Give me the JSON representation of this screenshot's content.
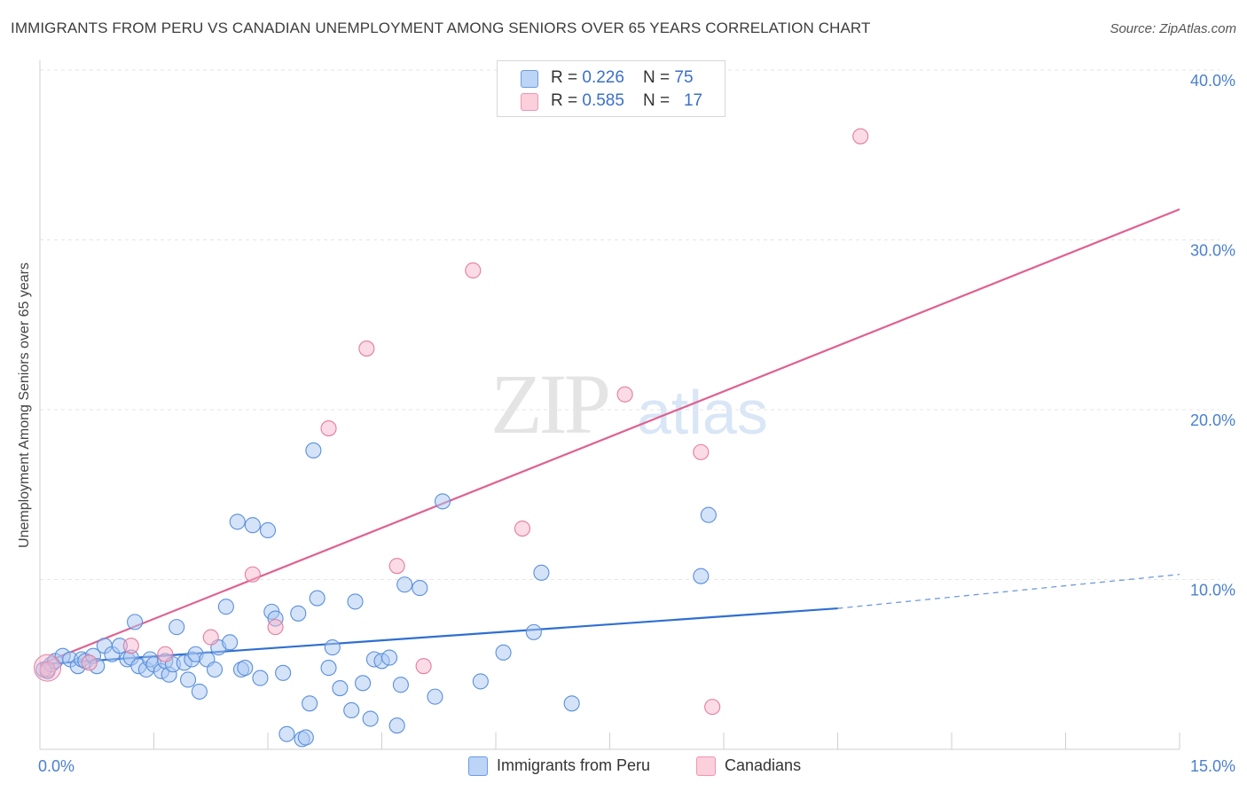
{
  "title": "IMMIGRANTS FROM PERU VS CANADIAN UNEMPLOYMENT AMONG SENIORS OVER 65 YEARS CORRELATION CHART",
  "source": "Source: ZipAtlas.com",
  "watermark": {
    "zip": "ZIP",
    "atlas": "atlas"
  },
  "legend": {
    "peru": {
      "r_label": "R = ",
      "r_value": "0.226",
      "n_label": "N = ",
      "n_value": "75",
      "color": "#a9c8f2"
    },
    "canadians": {
      "r_label": "R = ",
      "r_value": "0.585",
      "n_label": "N = ",
      "n_value": "17",
      "color": "#f7b8cb"
    }
  },
  "bottom_legend": {
    "peru": "Immigrants from Peru",
    "canadians": "Canadians"
  },
  "chart_data": {
    "type": "scatter",
    "title": "IMMIGRANTS FROM PERU VS CANADIAN UNEMPLOYMENT AMONG SENIORS OVER 65 YEARS CORRELATION CHART",
    "xlabel": "",
    "ylabel": "Unemployment Among Seniors over 65 years",
    "xlim": [
      0,
      15
    ],
    "ylim": [
      0,
      40
    ],
    "x_tick_labels": [
      "0.0%",
      "15.0%"
    ],
    "y_ticks": [
      10,
      20,
      30,
      40
    ],
    "y_tick_labels": [
      "10.0%",
      "20.0%",
      "30.0%",
      "40.0%"
    ],
    "grid": true,
    "series": [
      {
        "name": "Immigrants from Peru",
        "color": "#a9c8f2",
        "stroke": "#5a8fdc",
        "trend_color": "#2f6fd0",
        "trend": {
          "x": [
            0,
            10.5
          ],
          "y": [
            5.0,
            8.3
          ],
          "dashed_to": [
            15,
            10.3
          ]
        },
        "points": [
          [
            0.1,
            4.6
          ],
          [
            0.15,
            5.0
          ],
          [
            0.2,
            5.2
          ],
          [
            0.3,
            5.5
          ],
          [
            0.4,
            5.3
          ],
          [
            0.5,
            4.9
          ],
          [
            0.55,
            5.3
          ],
          [
            0.6,
            5.2
          ],
          [
            0.7,
            5.5
          ],
          [
            0.75,
            4.9
          ],
          [
            0.85,
            6.1
          ],
          [
            0.95,
            5.6
          ],
          [
            1.05,
            6.1
          ],
          [
            1.15,
            5.3
          ],
          [
            1.2,
            5.4
          ],
          [
            1.25,
            7.5
          ],
          [
            1.3,
            4.9
          ],
          [
            1.4,
            4.7
          ],
          [
            1.45,
            5.3
          ],
          [
            1.5,
            5.0
          ],
          [
            1.6,
            4.6
          ],
          [
            1.65,
            5.2
          ],
          [
            1.7,
            4.4
          ],
          [
            1.75,
            5.0
          ],
          [
            1.8,
            7.2
          ],
          [
            1.9,
            5.1
          ],
          [
            1.95,
            4.1
          ],
          [
            2.0,
            5.3
          ],
          [
            2.05,
            5.6
          ],
          [
            2.1,
            3.4
          ],
          [
            2.2,
            5.3
          ],
          [
            2.3,
            4.7
          ],
          [
            2.35,
            6.0
          ],
          [
            2.45,
            8.4
          ],
          [
            2.5,
            6.3
          ],
          [
            2.6,
            13.4
          ],
          [
            2.65,
            4.7
          ],
          [
            2.7,
            4.8
          ],
          [
            2.8,
            13.2
          ],
          [
            2.9,
            4.2
          ],
          [
            3.0,
            12.9
          ],
          [
            3.05,
            8.1
          ],
          [
            3.1,
            7.7
          ],
          [
            3.2,
            4.5
          ],
          [
            3.25,
            0.9
          ],
          [
            3.4,
            8.0
          ],
          [
            3.45,
            0.6
          ],
          [
            3.5,
            0.7
          ],
          [
            3.55,
            2.7
          ],
          [
            3.6,
            17.6
          ],
          [
            3.65,
            8.9
          ],
          [
            3.8,
            4.8
          ],
          [
            3.85,
            6.0
          ],
          [
            3.95,
            3.6
          ],
          [
            4.1,
            2.3
          ],
          [
            4.15,
            8.7
          ],
          [
            4.25,
            3.9
          ],
          [
            4.35,
            1.8
          ],
          [
            4.4,
            5.3
          ],
          [
            4.5,
            5.2
          ],
          [
            4.6,
            5.4
          ],
          [
            4.7,
            1.4
          ],
          [
            4.75,
            3.8
          ],
          [
            4.8,
            9.7
          ],
          [
            5.0,
            9.5
          ],
          [
            5.2,
            3.1
          ],
          [
            5.3,
            14.6
          ],
          [
            5.8,
            4.0
          ],
          [
            6.1,
            5.7
          ],
          [
            6.5,
            6.9
          ],
          [
            6.6,
            10.4
          ],
          [
            7.0,
            2.7
          ],
          [
            8.7,
            10.2
          ],
          [
            8.8,
            13.8
          ],
          [
            0.05,
            4.7
          ]
        ]
      },
      {
        "name": "Canadians",
        "color": "#f7b8cb",
        "stroke": "#e57ca0",
        "trend_color": "#e06090",
        "trend": {
          "x": [
            0,
            15
          ],
          "y": [
            5.0,
            31.8
          ]
        },
        "points": [
          [
            0.1,
            4.7
          ],
          [
            0.65,
            5.1
          ],
          [
            1.2,
            6.1
          ],
          [
            1.65,
            5.6
          ],
          [
            2.25,
            6.6
          ],
          [
            2.8,
            10.3
          ],
          [
            3.1,
            7.2
          ],
          [
            3.8,
            18.9
          ],
          [
            4.3,
            23.6
          ],
          [
            4.7,
            10.8
          ],
          [
            5.05,
            4.9
          ],
          [
            5.7,
            28.2
          ],
          [
            6.35,
            13.0
          ],
          [
            7.7,
            20.9
          ],
          [
            8.7,
            17.5
          ],
          [
            8.85,
            2.5
          ],
          [
            10.8,
            36.1
          ]
        ]
      }
    ]
  }
}
